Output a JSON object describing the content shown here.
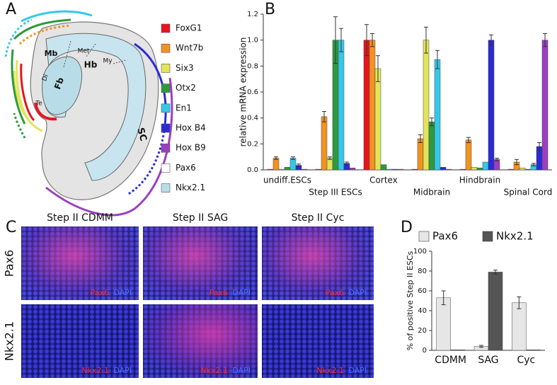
{
  "panel_letters": [
    "A",
    "B",
    "C",
    "D"
  ],
  "embryo": {
    "regions": [
      "Mb",
      "Met",
      "My",
      "Hb",
      "Di",
      "Fb",
      "Te",
      "SC"
    ],
    "legend_extra": [
      {
        "name": "Pax6",
        "color": "#ffffff"
      },
      {
        "name": "Nkx2.1",
        "color": "#b9dde8"
      }
    ]
  },
  "micrographs": {
    "columns": [
      "Step II CDMM",
      "Step II SAG",
      "Step II Cyc"
    ],
    "rows": [
      "Pax6",
      "Nkx2.1"
    ],
    "stains": [
      [
        "Pax6",
        "DAPI"
      ],
      [
        "Nkx2.1",
        "DAPI"
      ]
    ]
  },
  "chart_data": [
    {
      "type": "bar",
      "ylabel": "relative mRNA expression",
      "categories": [
        "undiff.ESCs",
        "Step III ESCs",
        "Cortex",
        "Midbrain",
        "Hindbrain",
        "Spinal Cord"
      ],
      "series": [
        {
          "name": "FoxG1",
          "color": "#e8141e",
          "values": [
            0.005,
            0.005,
            1.0,
            0.005,
            0.005,
            0.005
          ],
          "errors": [
            0,
            0,
            0.12,
            0,
            0,
            0
          ]
        },
        {
          "name": "Wnt7b",
          "color": "#f39221",
          "values": [
            0.09,
            0.41,
            1.0,
            0.24,
            0.23,
            0.06
          ],
          "errors": [
            0.01,
            0.04,
            0.05,
            0.03,
            0.02,
            0.02
          ]
        },
        {
          "name": "Six3",
          "color": "#e2e45a",
          "values": [
            0.005,
            0.09,
            0.78,
            1.0,
            0.02,
            0.015
          ],
          "errors": [
            0,
            0.01,
            0.1,
            0.1,
            0,
            0
          ]
        },
        {
          "name": "Otx2",
          "color": "#2e9a3e",
          "values": [
            0.02,
            1.0,
            0.04,
            0.37,
            0.015,
            0.005
          ],
          "errors": [
            0,
            0.18,
            0,
            0.03,
            0,
            0
          ]
        },
        {
          "name": "En1",
          "color": "#35c8e8",
          "values": [
            0.09,
            1.0,
            0.005,
            0.85,
            0.06,
            0.04
          ],
          "errors": [
            0.01,
            0.09,
            0,
            0.07,
            0,
            0.01
          ]
        },
        {
          "name": "Hox B4",
          "color": "#2b2bd6",
          "values": [
            0.035,
            0.05,
            0.005,
            0.02,
            1.0,
            0.18
          ],
          "errors": [
            0.01,
            0.01,
            0,
            0,
            0.04,
            0.03
          ]
        },
        {
          "name": "Hox B9",
          "color": "#9a3fc0",
          "values": [
            0.005,
            0.015,
            0.005,
            0.005,
            0.08,
            1.0
          ],
          "errors": [
            0,
            0,
            0,
            0,
            0.01,
            0.05
          ]
        }
      ],
      "ylim": [
        0,
        1.2
      ],
      "yticks": [
        {
          "value": 0,
          "label": "0.0"
        },
        0.2,
        0.4,
        0.6,
        0.8,
        {
          "value": 1,
          "label": "1.0"
        },
        1.2
      ]
    },
    {
      "type": "bar",
      "ylabel": "% of positive Step II ESCs",
      "categories": [
        "CDMM",
        "SAG",
        "Cyc"
      ],
      "series": [
        {
          "name": "Pax6",
          "color": "#e6e6e6",
          "values": [
            53,
            4,
            48
          ],
          "errors": [
            7,
            1,
            6
          ]
        },
        {
          "name": "Nkx2.1",
          "color": "#555555",
          "values": [
            0.5,
            79,
            0.5
          ],
          "errors": [
            0,
            2,
            0
          ]
        }
      ],
      "ylim": [
        0,
        100
      ],
      "yticks": [
        0,
        20,
        40,
        60,
        80,
        100
      ],
      "legend": "top"
    }
  ]
}
